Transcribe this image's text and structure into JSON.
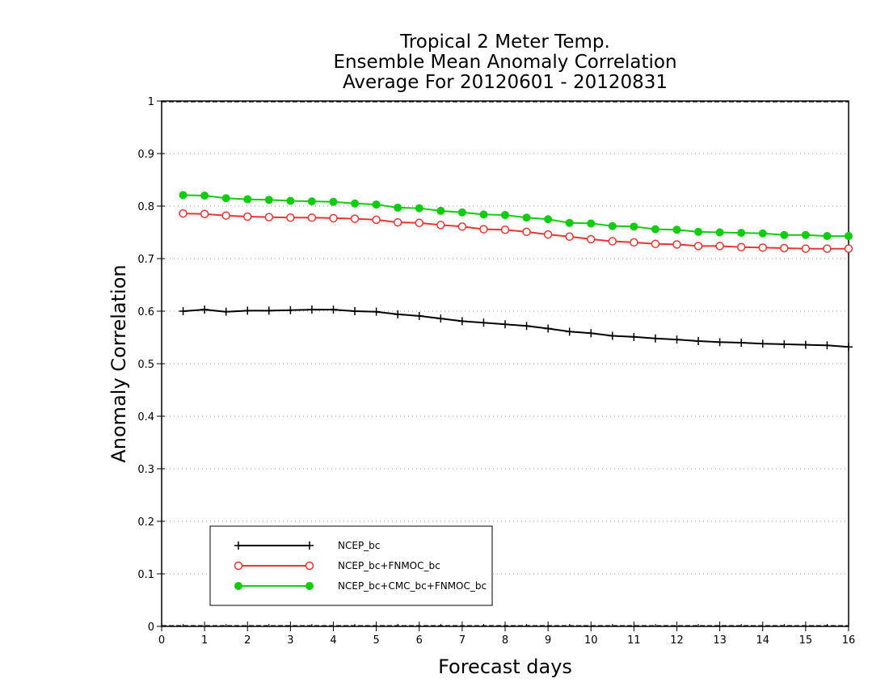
{
  "chart_data": {
    "type": "line",
    "title_lines": [
      "Tropical 2 Meter Temp.",
      "Ensemble Mean Anomaly Correlation",
      "Average For 20120601 - 20120831"
    ],
    "xlabel": "Forecast days",
    "ylabel": "Anomaly Correlation",
    "xlim": [
      0,
      16
    ],
    "ylim": [
      0,
      1
    ],
    "xticks": [
      "0",
      "1",
      "2",
      "3",
      "4",
      "5",
      "6",
      "7",
      "8",
      "9",
      "10",
      "11",
      "12",
      "13",
      "14",
      "15",
      "16"
    ],
    "yticks": [
      "0",
      "0.1",
      "0.2",
      "0.3",
      "0.4",
      "0.5",
      "0.6",
      "0.7",
      "0.8",
      "0.9",
      "1"
    ],
    "grid": true,
    "legend_position": "bottom-left",
    "x": [
      0.5,
      1,
      1.5,
      2,
      2.5,
      3,
      3.5,
      4,
      4.5,
      5,
      5.5,
      6,
      6.5,
      7,
      7.5,
      8,
      8.5,
      9,
      9.5,
      10,
      10.5,
      11,
      11.5,
      12,
      12.5,
      13,
      13.5,
      14,
      14.5,
      15,
      15.5,
      16
    ],
    "series": [
      {
        "name": "NCEP_bc",
        "color": "#000000",
        "marker": "plus",
        "values": [
          0.6,
          0.603,
          0.599,
          0.601,
          0.601,
          0.602,
          0.603,
          0.603,
          0.6,
          0.599,
          0.594,
          0.591,
          0.586,
          0.581,
          0.578,
          0.575,
          0.572,
          0.567,
          0.561,
          0.558,
          0.553,
          0.551,
          0.548,
          0.546,
          0.543,
          0.541,
          0.54,
          0.538,
          0.537,
          0.536,
          0.535,
          0.532
        ]
      },
      {
        "name": "NCEP_bc+FNMOC_bc",
        "color": "#ee3333",
        "marker": "open-circle",
        "values": [
          0.786,
          0.785,
          0.782,
          0.78,
          0.779,
          0.778,
          0.778,
          0.777,
          0.776,
          0.774,
          0.769,
          0.768,
          0.764,
          0.761,
          0.756,
          0.755,
          0.751,
          0.746,
          0.742,
          0.737,
          0.733,
          0.731,
          0.728,
          0.727,
          0.724,
          0.724,
          0.722,
          0.721,
          0.72,
          0.719,
          0.719,
          0.719
        ]
      },
      {
        "name": "NCEP_bc+CMC_bc+FNMOC_bc",
        "color": "#11cc11",
        "marker": "filled-circle",
        "values": [
          0.821,
          0.82,
          0.815,
          0.813,
          0.812,
          0.81,
          0.809,
          0.808,
          0.805,
          0.803,
          0.797,
          0.796,
          0.791,
          0.788,
          0.784,
          0.783,
          0.778,
          0.775,
          0.768,
          0.767,
          0.762,
          0.761,
          0.756,
          0.755,
          0.751,
          0.75,
          0.749,
          0.748,
          0.745,
          0.745,
          0.743,
          0.743
        ]
      }
    ]
  }
}
